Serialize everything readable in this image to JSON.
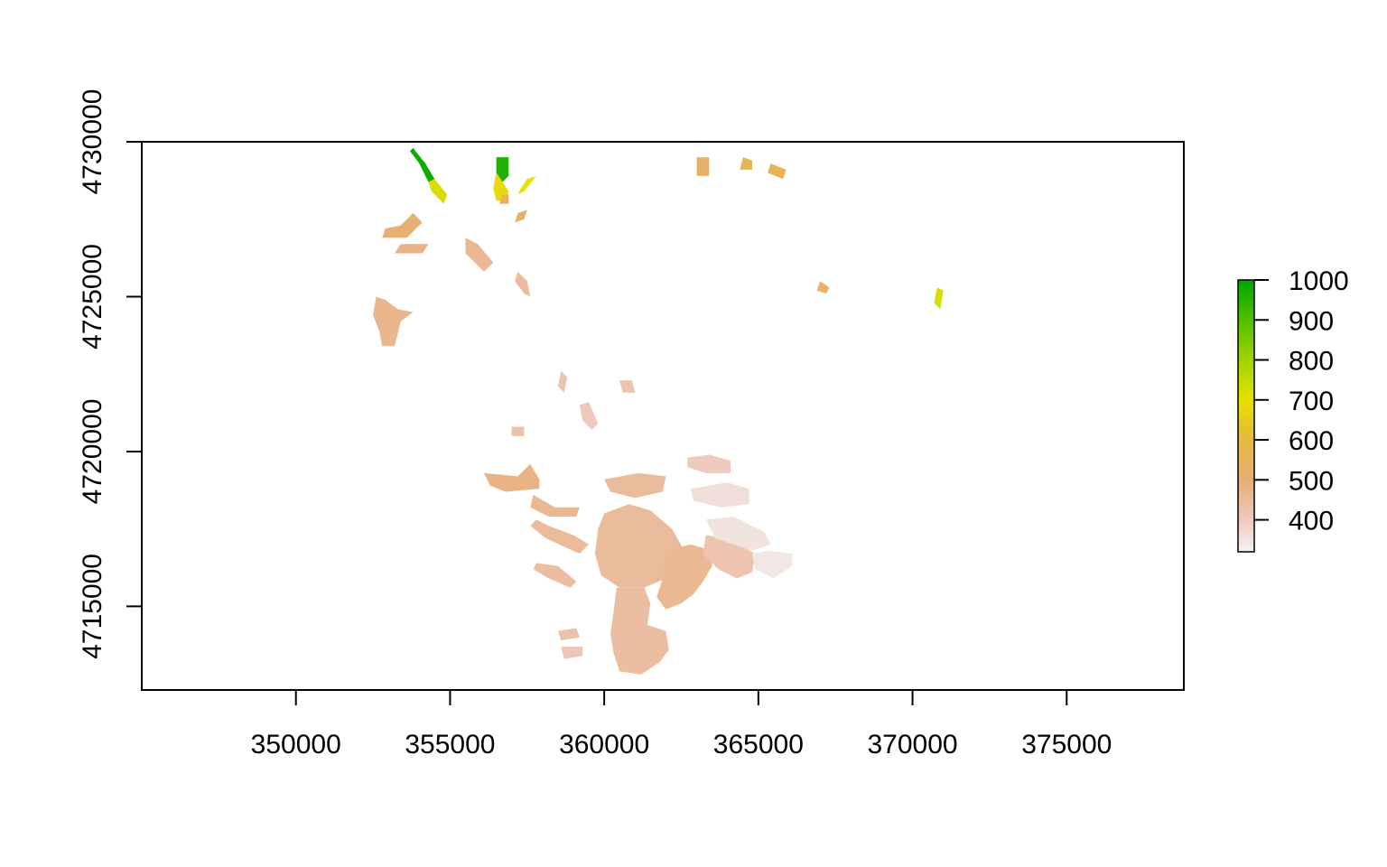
{
  "chart_data": {
    "type": "heatmap",
    "title": "",
    "xlabel": "",
    "ylabel": "",
    "xlim": [
      345000,
      378800
    ],
    "ylim": [
      4712300,
      4730000
    ],
    "x_ticks": [
      350000,
      355000,
      360000,
      365000,
      370000,
      375000
    ],
    "x_tick_labels": [
      "350000",
      "355000",
      "360000",
      "365000",
      "370000",
      "375000"
    ],
    "y_ticks": [
      4715000,
      4720000,
      4725000,
      4730000
    ],
    "y_tick_labels": [
      "4715000",
      "4720000",
      "4725000",
      "4730000"
    ],
    "grid": false,
    "legend": {
      "placement": "right",
      "type": "colorbar",
      "range": [
        320,
        1000
      ],
      "ticks": [
        400,
        500,
        600,
        700,
        800,
        900,
        1000
      ],
      "tick_labels": [
        "400",
        "500",
        "600",
        "700",
        "800",
        "900",
        "1000"
      ],
      "colors": [
        {
          "value": 320,
          "color": "#f2f2f2"
        },
        {
          "value": 400,
          "color": "#eec9bd"
        },
        {
          "value": 500,
          "color": "#e8ae78"
        },
        {
          "value": 600,
          "color": "#e6b93e"
        },
        {
          "value": 700,
          "color": "#e6e100"
        },
        {
          "value": 800,
          "color": "#9fd400"
        },
        {
          "value": 900,
          "color": "#52be00"
        },
        {
          "value": 1000,
          "color": "#00a600"
        }
      ]
    },
    "patches": [
      {
        "value": 980,
        "points": [
          [
            353800,
            4729800
          ],
          [
            354200,
            4729300
          ],
          [
            354500,
            4728800
          ],
          [
            354300,
            4728700
          ],
          [
            354000,
            4729300
          ],
          [
            353700,
            4729700
          ]
        ]
      },
      {
        "value": 720,
        "points": [
          [
            354500,
            4728800
          ],
          [
            354900,
            4728300
          ],
          [
            354800,
            4728000
          ],
          [
            354400,
            4728400
          ],
          [
            354300,
            4728700
          ]
        ]
      },
      {
        "value": 960,
        "points": [
          [
            356500,
            4729500
          ],
          [
            356900,
            4729500
          ],
          [
            356900,
            4728900
          ],
          [
            356700,
            4728700
          ],
          [
            356500,
            4729000
          ]
        ]
      },
      {
        "value": 680,
        "points": [
          [
            356500,
            4729000
          ],
          [
            356700,
            4728700
          ],
          [
            356900,
            4728400
          ],
          [
            356800,
            4728100
          ],
          [
            356500,
            4728100
          ],
          [
            356400,
            4728500
          ]
        ]
      },
      {
        "value": 700,
        "points": [
          [
            357500,
            4728800
          ],
          [
            357800,
            4728900
          ],
          [
            357400,
            4728400
          ],
          [
            357200,
            4728300
          ],
          [
            357300,
            4728500
          ]
        ]
      },
      {
        "value": 560,
        "points": [
          [
            356700,
            4728300
          ],
          [
            356900,
            4728300
          ],
          [
            356900,
            4728000
          ],
          [
            356600,
            4728000
          ]
        ]
      },
      {
        "value": 520,
        "points": [
          [
            357200,
            4727700
          ],
          [
            357500,
            4727800
          ],
          [
            357400,
            4727500
          ],
          [
            357100,
            4727400
          ]
        ]
      },
      {
        "value": 510,
        "points": [
          [
            352900,
            4727200
          ],
          [
            353400,
            4727300
          ],
          [
            353800,
            4727700
          ],
          [
            354100,
            4727400
          ],
          [
            353600,
            4726900
          ],
          [
            352800,
            4726900
          ]
        ]
      },
      {
        "value": 480,
        "points": [
          [
            353400,
            4726700
          ],
          [
            354300,
            4726700
          ],
          [
            354100,
            4726400
          ],
          [
            353200,
            4726400
          ]
        ]
      },
      {
        "value": 460,
        "points": [
          [
            355500,
            4726900
          ],
          [
            355900,
            4726700
          ],
          [
            356400,
            4726100
          ],
          [
            356100,
            4725800
          ],
          [
            355500,
            4726400
          ]
        ]
      },
      {
        "value": 450,
        "points": [
          [
            357200,
            4725800
          ],
          [
            357500,
            4725500
          ],
          [
            357600,
            4725000
          ],
          [
            357400,
            4725100
          ],
          [
            357100,
            4725500
          ]
        ]
      },
      {
        "value": 470,
        "points": [
          [
            352600,
            4725000
          ],
          [
            352900,
            4724900
          ],
          [
            353300,
            4724600
          ],
          [
            353800,
            4724500
          ],
          [
            353400,
            4724200
          ],
          [
            353200,
            4723400
          ],
          [
            352800,
            4723400
          ],
          [
            352700,
            4723900
          ],
          [
            352500,
            4724400
          ]
        ]
      },
      {
        "value": 520,
        "points": [
          [
            363000,
            4729500
          ],
          [
            363400,
            4729500
          ],
          [
            363400,
            4728900
          ],
          [
            363000,
            4728900
          ]
        ]
      },
      {
        "value": 560,
        "points": [
          [
            364500,
            4729500
          ],
          [
            364800,
            4729400
          ],
          [
            364800,
            4729100
          ],
          [
            364400,
            4729100
          ]
        ]
      },
      {
        "value": 560,
        "points": [
          [
            365400,
            4729300
          ],
          [
            365900,
            4729100
          ],
          [
            365800,
            4728800
          ],
          [
            365300,
            4729000
          ]
        ]
      },
      {
        "value": 520,
        "points": [
          [
            367000,
            4725500
          ],
          [
            367300,
            4725300
          ],
          [
            367200,
            4725100
          ],
          [
            366900,
            4725200
          ]
        ]
      },
      {
        "value": 720,
        "points": [
          [
            370800,
            4725300
          ],
          [
            371000,
            4725200
          ],
          [
            370900,
            4724600
          ],
          [
            370700,
            4724800
          ]
        ]
      },
      {
        "value": 420,
        "points": [
          [
            358600,
            4722600
          ],
          [
            358800,
            4722400
          ],
          [
            358700,
            4721900
          ],
          [
            358500,
            4722100
          ]
        ]
      },
      {
        "value": 400,
        "points": [
          [
            359200,
            4721500
          ],
          [
            359500,
            4721600
          ],
          [
            359800,
            4720900
          ],
          [
            359600,
            4720700
          ],
          [
            359300,
            4721000
          ]
        ]
      },
      {
        "value": 420,
        "points": [
          [
            360500,
            4722300
          ],
          [
            360900,
            4722300
          ],
          [
            361000,
            4721900
          ],
          [
            360600,
            4721900
          ]
        ]
      },
      {
        "value": 430,
        "points": [
          [
            357000,
            4720800
          ],
          [
            357400,
            4720800
          ],
          [
            357400,
            4720500
          ],
          [
            357000,
            4720500
          ]
        ]
      },
      {
        "value": 480,
        "points": [
          [
            356100,
            4719300
          ],
          [
            357200,
            4719200
          ],
          [
            357600,
            4719600
          ],
          [
            357900,
            4719100
          ],
          [
            357900,
            4718800
          ],
          [
            356800,
            4718700
          ],
          [
            356300,
            4718900
          ]
        ]
      },
      {
        "value": 460,
        "points": [
          [
            357700,
            4718600
          ],
          [
            358400,
            4718200
          ],
          [
            359200,
            4718200
          ],
          [
            359100,
            4717900
          ],
          [
            358200,
            4717900
          ],
          [
            357600,
            4718200
          ]
        ]
      },
      {
        "value": 450,
        "points": [
          [
            357800,
            4717800
          ],
          [
            358200,
            4717600
          ],
          [
            359000,
            4717300
          ],
          [
            359500,
            4717000
          ],
          [
            359200,
            4716700
          ],
          [
            358100,
            4717200
          ],
          [
            357600,
            4717600
          ]
        ]
      },
      {
        "value": 440,
        "points": [
          [
            357800,
            4716400
          ],
          [
            358500,
            4716300
          ],
          [
            359100,
            4715800
          ],
          [
            358900,
            4715600
          ],
          [
            358200,
            4715900
          ],
          [
            357700,
            4716200
          ]
        ]
      },
      {
        "value": 450,
        "points": [
          [
            360000,
            4719100
          ],
          [
            361100,
            4719300
          ],
          [
            362000,
            4719200
          ],
          [
            361900,
            4718700
          ],
          [
            361000,
            4718500
          ],
          [
            360200,
            4718700
          ]
        ]
      },
      {
        "value": 450,
        "points": [
          [
            360000,
            4718000
          ],
          [
            360800,
            4718300
          ],
          [
            361500,
            4718100
          ],
          [
            362200,
            4717500
          ],
          [
            362600,
            4716800
          ],
          [
            362500,
            4716200
          ],
          [
            362000,
            4715900
          ],
          [
            361300,
            4715600
          ],
          [
            360500,
            4715600
          ],
          [
            359900,
            4716000
          ],
          [
            359700,
            4716700
          ],
          [
            359800,
            4717500
          ]
        ]
      },
      {
        "value": 440,
        "points": [
          [
            360400,
            4715600
          ],
          [
            361300,
            4715600
          ],
          [
            361500,
            4715100
          ],
          [
            361400,
            4714400
          ],
          [
            362000,
            4714200
          ],
          [
            362100,
            4713600
          ],
          [
            361800,
            4713200
          ],
          [
            361200,
            4712800
          ],
          [
            360500,
            4712900
          ],
          [
            360300,
            4713500
          ],
          [
            360200,
            4714100
          ],
          [
            360300,
            4714800
          ]
        ]
      },
      {
        "value": 460,
        "points": [
          [
            362000,
            4716800
          ],
          [
            362800,
            4717000
          ],
          [
            363500,
            4716800
          ],
          [
            363500,
            4716300
          ],
          [
            363200,
            4715800
          ],
          [
            362900,
            4715400
          ],
          [
            362500,
            4715100
          ],
          [
            362000,
            4714900
          ],
          [
            361700,
            4715300
          ],
          [
            361900,
            4715900
          ]
        ]
      },
      {
        "value": 420,
        "points": [
          [
            363300,
            4717300
          ],
          [
            364000,
            4717200
          ],
          [
            364900,
            4716700
          ],
          [
            364800,
            4716100
          ],
          [
            364300,
            4715900
          ],
          [
            363700,
            4716200
          ],
          [
            363200,
            4716700
          ]
        ]
      },
      {
        "value": 400,
        "points": [
          [
            362700,
            4719800
          ],
          [
            363400,
            4719900
          ],
          [
            364100,
            4719700
          ],
          [
            364100,
            4719300
          ],
          [
            363300,
            4719300
          ],
          [
            362700,
            4719500
          ]
        ]
      },
      {
        "value": 360,
        "points": [
          [
            362800,
            4718800
          ],
          [
            364000,
            4719000
          ],
          [
            364700,
            4718800
          ],
          [
            364700,
            4718300
          ],
          [
            363800,
            4718200
          ],
          [
            362900,
            4718400
          ]
        ]
      },
      {
        "value": 350,
        "points": [
          [
            363300,
            4717800
          ],
          [
            364200,
            4717900
          ],
          [
            365200,
            4717400
          ],
          [
            365400,
            4717000
          ],
          [
            364800,
            4716800
          ],
          [
            363600,
            4717200
          ]
        ]
      },
      {
        "value": 340,
        "points": [
          [
            364800,
            4716700
          ],
          [
            365300,
            4716800
          ],
          [
            366100,
            4716700
          ],
          [
            366100,
            4716300
          ],
          [
            365500,
            4715900
          ],
          [
            364900,
            4716200
          ]
        ]
      },
      {
        "value": 410,
        "points": [
          [
            358600,
            4713700
          ],
          [
            359300,
            4713700
          ],
          [
            359300,
            4713400
          ],
          [
            358700,
            4713300
          ]
        ]
      },
      {
        "value": 430,
        "points": [
          [
            358500,
            4714200
          ],
          [
            359100,
            4714300
          ],
          [
            359200,
            4714000
          ],
          [
            358600,
            4713900
          ]
        ]
      }
    ]
  }
}
